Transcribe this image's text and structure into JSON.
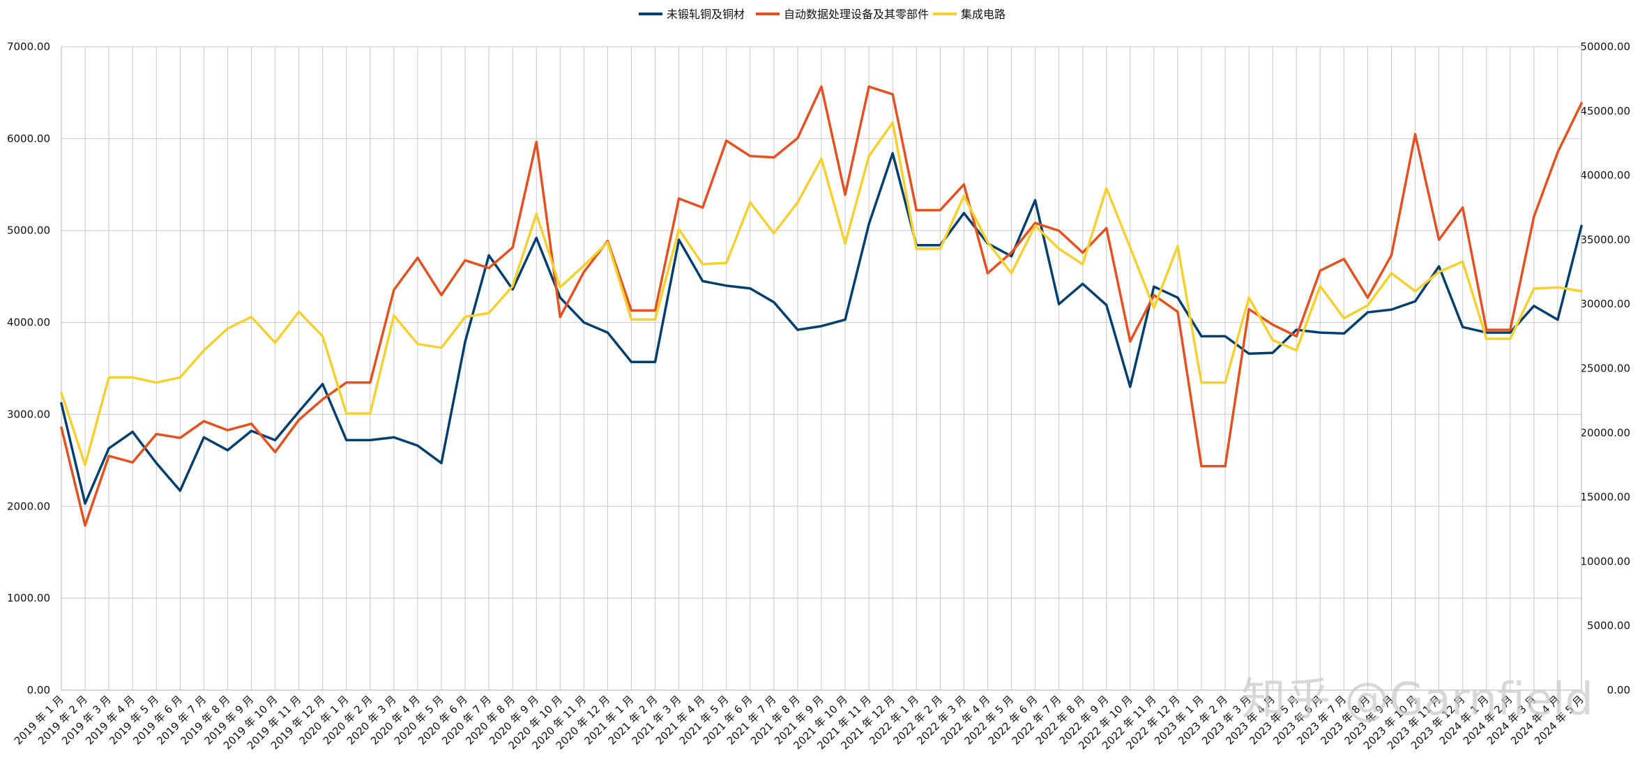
{
  "watermark": "知乎 @Garnfield",
  "chart_data": {
    "type": "line",
    "legend_position": "top-center",
    "grid": true,
    "y_left": {
      "min": 0,
      "max": 7000,
      "step": 1000,
      "decimals": 2
    },
    "y_right": {
      "min": 0,
      "max": 50000,
      "step": 5000,
      "decimals": 2
    },
    "categories": [
      "2019 年 1 月",
      "2019 年 2 月",
      "2019 年 3 月",
      "2019 年 4 月",
      "2019 年 5 月",
      "2019 年 6 月",
      "2019 年 7 月",
      "2019 年 8 月",
      "2019 年 9 月",
      "2019 年 10 月",
      "2019 年 11 月",
      "2019 年 12 月",
      "2020 年 1 月",
      "2020 年 2 月",
      "2020 年 3 月",
      "2020 年 4 月",
      "2020 年 5 月",
      "2020 年 6 月",
      "2020 年 7 月",
      "2020 年 8 月",
      "2020 年 9 月",
      "2020 年 10 月",
      "2020 年 11 月",
      "2020 年 12 月",
      "2021 年 1 月",
      "2021 年 2 月",
      "2021 年 3 月",
      "2021 年 4 月",
      "2021 年 5 月",
      "2021 年 6 月",
      "2021 年 7 月",
      "2021 年 8 月",
      "2021 年 9 月",
      "2021 年 10 月",
      "2021 年 11 月",
      "2021 年 12 月",
      "2022 年 1 月",
      "2022 年 2 月",
      "2022 年 3 月",
      "2022 年 4 月",
      "2022 年 5 月",
      "2022 年 6 月",
      "2022 年 7 月",
      "2022 年 8 月",
      "2022 年 9 月",
      "2022 年 10 月",
      "2022 年 11 月",
      "2022 年 12 月",
      "2023 年 1 月",
      "2023 年 2 月",
      "2023 年 3 月",
      "2023 年 4 月",
      "2023 年 5 月",
      "2023 年 6 月",
      "2023 年 7 月",
      "2023 年 8 月",
      "2023 年 9 月",
      "2023 年 10 月",
      "2023 年 11 月",
      "2023 年 12 月",
      "2024 年 1 月",
      "2024 年 2 月",
      "2024 年 3 月",
      "2024 年 4 月",
      "2024 年 5 月"
    ],
    "series": [
      {
        "name": "未锻轧铜及铜材",
        "color": "#003f6f",
        "axis": "left",
        "values": [
          3120,
          2030,
          2630,
          2810,
          2470,
          2170,
          2750,
          2610,
          2820,
          2720,
          3030,
          3330,
          2720,
          2720,
          2750,
          2660,
          2470,
          3790,
          4730,
          4360,
          4920,
          4270,
          4000,
          3890,
          3570,
          3570,
          4900,
          4450,
          4400,
          4370,
          4220,
          3920,
          3960,
          4030,
          5070,
          5840,
          4840,
          4840,
          5190,
          4860,
          4720,
          5330,
          4200,
          4420,
          4190,
          3300,
          4390,
          4270,
          3850,
          3850,
          3660,
          3670,
          3920,
          3890,
          3880,
          4110,
          4140,
          4230,
          4610,
          3950,
          3890,
          3890,
          4180,
          4030,
          5050
        ]
      },
      {
        "name": "自动数据处理设备及其零部件",
        "color": "#e4501e",
        "axis": "right",
        "values": [
          20400,
          12800,
          18200,
          17700,
          19900,
          19600,
          20900,
          20200,
          20700,
          18500,
          21000,
          22600,
          23900,
          23900,
          31100,
          33600,
          30700,
          33400,
          32800,
          34400,
          42600,
          29000,
          32500,
          34900,
          29500,
          29500,
          38200,
          37500,
          42700,
          41500,
          41400,
          42900,
          46900,
          38500,
          46900,
          46300,
          37300,
          37300,
          39300,
          32400,
          34000,
          36300,
          35700,
          34000,
          35900,
          27100,
          30700,
          29400,
          17400,
          17400,
          29600,
          28400,
          27500,
          32600,
          33500,
          30500,
          33800,
          43200,
          35000,
          37500,
          28000,
          28000,
          36800,
          41800,
          45600
        ]
      },
      {
        "name": "集成电路",
        "color": "#f5d02e",
        "axis": "right",
        "values": [
          23100,
          17500,
          24300,
          24300,
          23900,
          24300,
          26400,
          28100,
          29000,
          27000,
          29400,
          27500,
          21500,
          21500,
          29100,
          26900,
          26600,
          29000,
          29300,
          31400,
          37000,
          31300,
          33000,
          34800,
          28800,
          28800,
          35800,
          33100,
          33200,
          37900,
          35500,
          37900,
          41300,
          34700,
          41500,
          44100,
          34300,
          34300,
          38400,
          34800,
          32400,
          36100,
          34300,
          33100,
          39000,
          34400,
          29700,
          34500,
          23900,
          23900,
          30500,
          27200,
          26400,
          31400,
          28900,
          29900,
          32400,
          31000,
          32500,
          33300,
          27300,
          27300,
          31200,
          31300,
          31000
        ]
      }
    ]
  }
}
